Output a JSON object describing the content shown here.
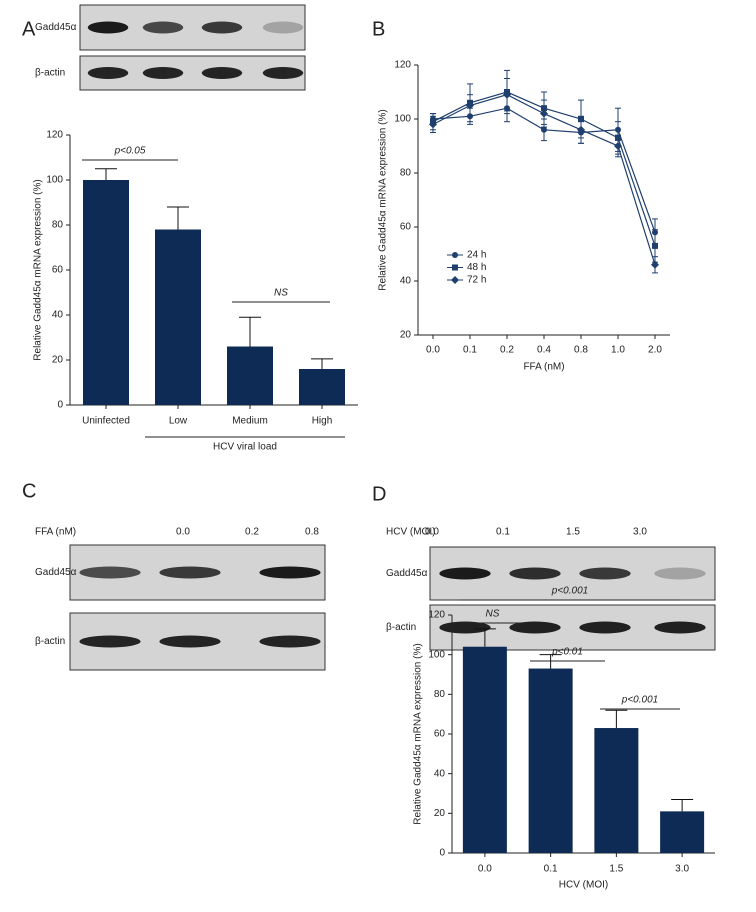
{
  "panels": [
    "A",
    "B",
    "C",
    "D"
  ],
  "blots": [
    {
      "rows": [
        "Gadd45α",
        "β-actin"
      ]
    },
    {
      "header": "FFA (nM)",
      "lanes": [
        "0.0",
        "0.2",
        "0.8"
      ],
      "rows": [
        "Gadd45α",
        "β-actin"
      ]
    },
    {
      "header": "HCV (MOI)",
      "lanes": [
        "0.0",
        "0.1",
        "1.5",
        "3.0"
      ],
      "rows": [
        "Gadd45α",
        "β-actin"
      ]
    }
  ],
  "chart_data": [
    {
      "type": "bar",
      "ylabel": "Relative Gadd45α mRNA expression (%)",
      "categories": [
        "Uninfected",
        "Low",
        "Medium",
        "High"
      ],
      "values": [
        100,
        78,
        26,
        16
      ],
      "errors": [
        5,
        10,
        13,
        4.5
      ],
      "color": "#0d2b55",
      "ylim": [
        0,
        120
      ],
      "yticks": [
        0,
        20,
        40,
        60,
        80,
        100,
        120
      ],
      "group_label": "HCV viral load",
      "annotations": [
        "p<0.05",
        "NS"
      ]
    },
    {
      "type": "line",
      "xlabel": "FFA (nM)",
      "ylabel": "Relative Gadd45α mRNA expression (%)",
      "categories": [
        "0.0",
        "0.1",
        "0.2",
        "0.4",
        "0.8",
        "1.0",
        "2.0"
      ],
      "ylim": [
        20,
        120
      ],
      "yticks": [
        20,
        40,
        60,
        80,
        100,
        120
      ],
      "legend": "lower left",
      "series": [
        {
          "name": "24 h",
          "color": "#1f3f6e",
          "marker": "circle",
          "values": [
            100,
            101,
            104,
            96,
            95,
            96,
            58
          ],
          "errors": [
            2,
            3,
            5,
            4,
            4,
            8,
            5
          ]
        },
        {
          "name": "48 h",
          "color": "#1f3f6e",
          "marker": "square",
          "values": [
            99,
            106,
            110,
            104,
            100,
            93,
            53
          ],
          "errors": [
            3,
            7,
            8,
            6,
            7,
            6,
            6
          ]
        },
        {
          "name": "72 h",
          "color": "#1f3f6e",
          "marker": "diamond",
          "values": [
            98,
            105,
            109,
            102,
            96,
            90,
            46
          ],
          "errors": [
            3,
            4,
            6,
            5,
            5,
            4,
            3
          ]
        }
      ]
    },
    {
      "type": "bar",
      "xlabel": "HCV (MOI)",
      "ylabel": "Relative Gadd45α mRNA expression (%)",
      "categories": [
        "0.0",
        "0.1",
        "1.5",
        "3.0"
      ],
      "values": [
        104,
        93,
        63,
        21
      ],
      "errors": [
        9,
        7,
        9,
        6
      ],
      "color": "#0d2b55",
      "ylim": [
        0,
        120
      ],
      "yticks": [
        0,
        20,
        40,
        60,
        80,
        100,
        120
      ],
      "annotations": [
        "NS",
        "p<0.01",
        "p<0.001",
        "p<0.001"
      ]
    }
  ]
}
